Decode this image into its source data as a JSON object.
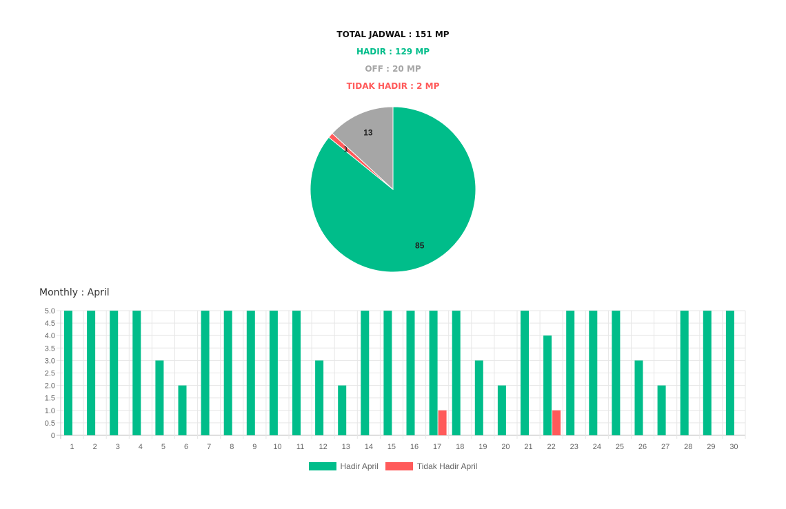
{
  "summary": {
    "total": "TOTAL JADWAL : 151 MP",
    "hadir": "HADIR : 129 MP",
    "off": "OFF : 20 MP",
    "tidak_hadir": "TIDAK HADIR : 2 MP"
  },
  "colors": {
    "hadir": "#00bd8a",
    "off": "#a6a6a6",
    "tidak_hadir": "#ff5a5a",
    "total": "#111111"
  },
  "monthly_title": "Monthly : April",
  "chart_data": [
    {
      "type": "pie",
      "slices": [
        {
          "label": "Hadir",
          "value": 85,
          "color": "#00bd8a"
        },
        {
          "label": "Tidak Hadir",
          "value": 1,
          "color": "#ff5a5a"
        },
        {
          "label": "Off",
          "value": 13,
          "color": "#a6a6a6"
        }
      ],
      "data_labels": [
        "85",
        "1",
        "13"
      ]
    },
    {
      "type": "bar",
      "title": "Monthly : April",
      "categories": [
        "1",
        "2",
        "3",
        "4",
        "5",
        "6",
        "7",
        "8",
        "9",
        "10",
        "11",
        "12",
        "13",
        "14",
        "15",
        "16",
        "17",
        "18",
        "19",
        "20",
        "21",
        "22",
        "23",
        "24",
        "25",
        "26",
        "27",
        "28",
        "29",
        "30"
      ],
      "series": [
        {
          "name": "Hadir April",
          "color": "#00bd8a",
          "values": [
            5,
            5,
            5,
            5,
            3,
            2,
            5,
            5,
            5,
            5,
            5,
            3,
            2,
            5,
            5,
            5,
            5,
            5,
            3,
            2,
            5,
            4,
            5,
            5,
            5,
            3,
            2,
            5,
            5,
            5
          ]
        },
        {
          "name": "Tidak Hadir April",
          "color": "#ff5a5a",
          "values": [
            0,
            0,
            0,
            0,
            0,
            0,
            0,
            0,
            0,
            0,
            0,
            0,
            0,
            0,
            0,
            0,
            1,
            0,
            0,
            0,
            0,
            1,
            0,
            0,
            0,
            0,
            0,
            0,
            0,
            0
          ]
        }
      ],
      "ylim": [
        0,
        5
      ],
      "yticks": [
        "0",
        "0.5",
        "1.0",
        "1.5",
        "2.0",
        "2.5",
        "3.0",
        "3.5",
        "4.0",
        "4.5",
        "5.0"
      ],
      "grid": true,
      "legend": "bottom"
    }
  ]
}
